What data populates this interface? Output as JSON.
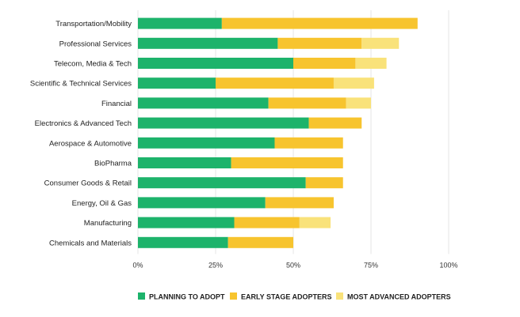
{
  "chart_data": {
    "type": "bar",
    "orientation": "horizontal",
    "stacked": true,
    "title": "",
    "xlabel": "",
    "ylabel": "",
    "xlim": [
      0,
      100
    ],
    "x_ticks": [
      "0%",
      "25%",
      "50%",
      "75%",
      "100%"
    ],
    "grid": true,
    "legend_position": "bottom",
    "categories": [
      "Transportation/Mobility",
      "Professional Services",
      "Telecom, Media & Tech",
      "Scientific & Technical Services",
      "Financial",
      "Electronics & Advanced Tech",
      "Aerospace & Automotive",
      "BioPharma",
      "Consumer Goods & Retail",
      "Energy, Oil & Gas",
      "Manufacturing",
      "Chemicals and Materials"
    ],
    "series": [
      {
        "name": "PLANNING TO ADOPT",
        "color": "#1db36b",
        "values": [
          27,
          45,
          50,
          25,
          42,
          55,
          44,
          30,
          54,
          41,
          31,
          29
        ]
      },
      {
        "name": "EARLY STAGE ADOPTERS",
        "color": "#f7c42e",
        "values": [
          63,
          27,
          20,
          38,
          25,
          17,
          22,
          36,
          12,
          22,
          21,
          21
        ]
      },
      {
        "name": "MOST ADVANCED ADOPTERS",
        "color": "#f9e27a",
        "values": [
          0,
          12,
          10,
          13,
          8,
          0,
          0,
          0,
          0,
          0,
          10,
          0
        ]
      }
    ]
  }
}
